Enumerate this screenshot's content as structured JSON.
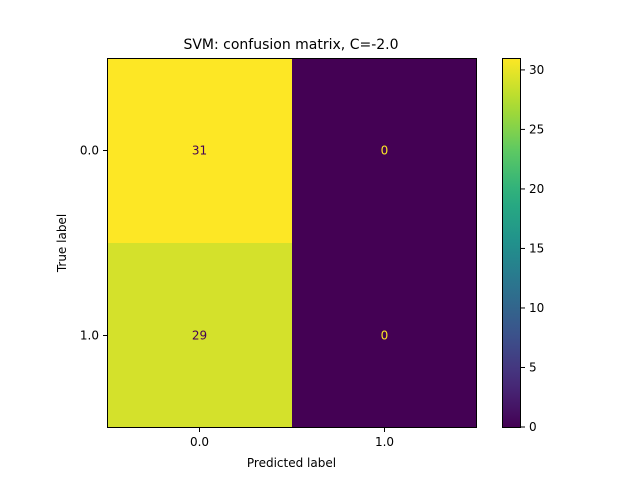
{
  "chart_data": {
    "type": "heatmap",
    "title": "SVM: confusion matrix, C=-2.0",
    "xlabel": "Predicted label",
    "ylabel": "True label",
    "x_categories": [
      "0.0",
      "1.0"
    ],
    "y_categories": [
      "0.0",
      "1.0"
    ],
    "matrix": [
      [
        31,
        0
      ],
      [
        29,
        0
      ]
    ],
    "colormap": "viridis",
    "value_range": [
      0,
      31
    ],
    "colorbar_ticks": [
      0,
      5,
      10,
      15,
      20,
      25,
      30
    ],
    "grid": false
  },
  "colors": {
    "text_on_bright": "#440154",
    "text_on_dark": "#fde725"
  }
}
